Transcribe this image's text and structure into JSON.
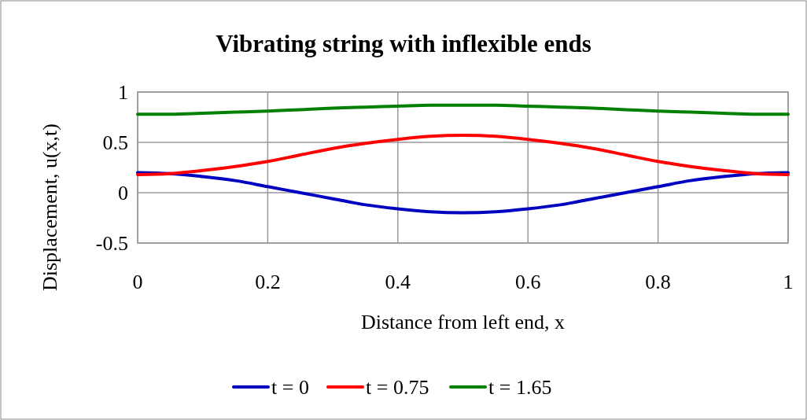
{
  "chart_data": {
    "type": "line",
    "title": "Vibrating string with inflexible ends",
    "xlabel": "Distance from left end, x",
    "ylabel": "Displacement, u(x,t)",
    "x": [
      0,
      0.05,
      0.1,
      0.15,
      0.2,
      0.25,
      0.3,
      0.35,
      0.4,
      0.45,
      0.5,
      0.55,
      0.6,
      0.65,
      0.7,
      0.75,
      0.8,
      0.85,
      0.9,
      0.95,
      1
    ],
    "series": [
      {
        "name": "t = 0",
        "color": "#0000c0",
        "values": [
          0.2,
          0.19,
          0.16,
          0.12,
          0.06,
          0,
          -0.06,
          -0.12,
          -0.16,
          -0.19,
          -0.2,
          -0.19,
          -0.16,
          -0.12,
          -0.06,
          0,
          0.06,
          0.12,
          0.16,
          0.19,
          0.2
        ]
      },
      {
        "name": "t = 0.75",
        "color": "#ff0000",
        "values": [
          0.18,
          0.19,
          0.22,
          0.26,
          0.31,
          0.375,
          0.44,
          0.49,
          0.53,
          0.56,
          0.57,
          0.56,
          0.53,
          0.49,
          0.44,
          0.375,
          0.31,
          0.26,
          0.22,
          0.19,
          0.18
        ]
      },
      {
        "name": "t = 1.65",
        "color": "#008000",
        "values": [
          0.78,
          0.78,
          0.79,
          0.8,
          0.81,
          0.825,
          0.84,
          0.85,
          0.86,
          0.87,
          0.87,
          0.87,
          0.86,
          0.85,
          0.84,
          0.825,
          0.81,
          0.8,
          0.79,
          0.78,
          0.78
        ]
      }
    ],
    "xlim": [
      0,
      1
    ],
    "xticks": [
      0,
      0.2,
      0.4,
      0.6,
      0.8,
      1
    ],
    "ylim": [
      -0.5,
      1
    ],
    "yticks": [
      -0.5,
      0,
      0.5,
      1
    ],
    "grid": true,
    "legend": "bottom",
    "marker": "none",
    "line_style": "solid"
  }
}
